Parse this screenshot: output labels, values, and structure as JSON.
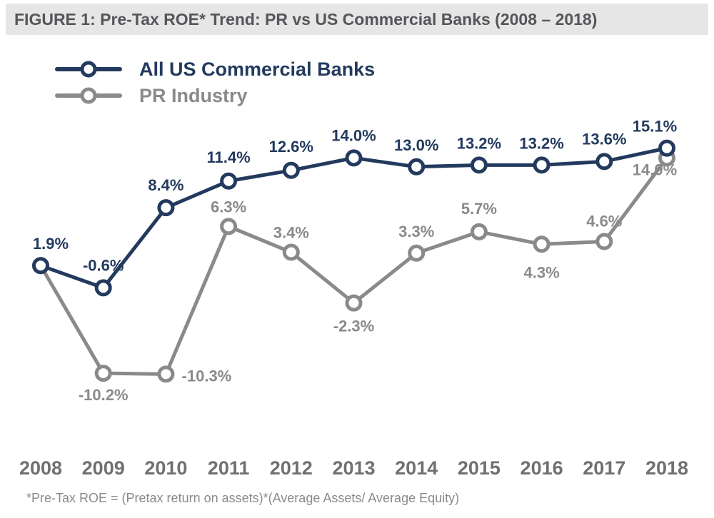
{
  "chart_data": {
    "type": "line",
    "title": "FIGURE 1: Pre-Tax ROE* Trend: PR vs US Commercial Banks (2008 – 2018)",
    "categories": [
      "2008",
      "2009",
      "2010",
      "2011",
      "2012",
      "2013",
      "2014",
      "2015",
      "2016",
      "2017",
      "2018"
    ],
    "series": [
      {
        "name": "All US Commercial Banks",
        "color": "#233a5e",
        "values": [
          1.9,
          -0.6,
          8.4,
          11.4,
          12.6,
          14.0,
          13.0,
          13.2,
          13.2,
          13.6,
          15.1
        ],
        "labels": [
          "1.9%",
          "-0.6%",
          "8.4%",
          "11.4%",
          "12.6%",
          "14.0%",
          "13.0%",
          "13.2%",
          "13.2%",
          "13.6%",
          "15.1%"
        ]
      },
      {
        "name": "PR Industry",
        "color": "#8a8a8a",
        "values": [
          1.9,
          -10.2,
          -10.3,
          6.3,
          3.4,
          -2.3,
          3.3,
          5.7,
          4.3,
          4.6,
          14.0
        ],
        "labels": [
          "",
          "-10.2%",
          "-10.3%",
          "6.3%",
          "3.4%",
          "-2.3%",
          "3.3%",
          "5.7%",
          "4.3%",
          "4.6%",
          "14.0%"
        ]
      }
    ],
    "ylim": [
      -11,
      16
    ],
    "grid": false,
    "legend_position": "top-left",
    "footnote": "*Pre-Tax ROE = (Pretax return on assets)*(Average Assets/ Average Equity)"
  }
}
